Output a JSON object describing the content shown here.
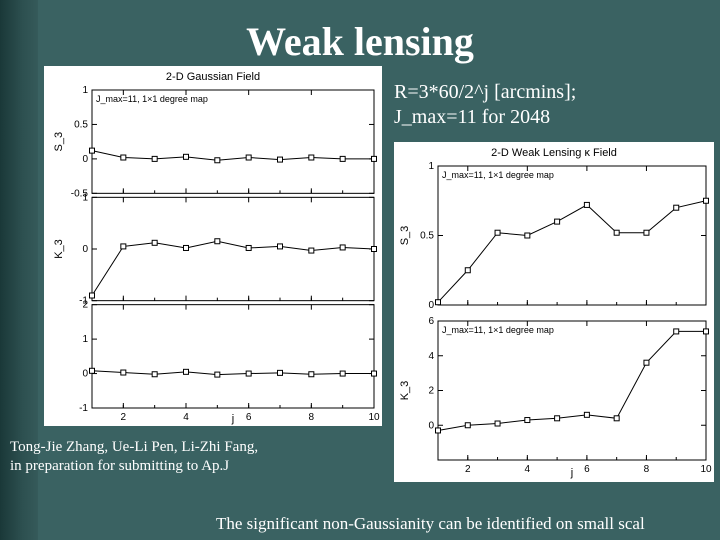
{
  "title": "Weak lensing",
  "formula_line1": "R=3*60/2^j  [arcmins];",
  "formula_line2": "J_max=11 for 2048",
  "credit_line1": "Tong-Jie Zhang, Ue-Li Pen, Li-Zhi Fang,",
  "credit_line2": " in preparation for submitting to Ap.J",
  "caption": "The significant non-Gaussianity can be identified on small scal",
  "colors": {
    "slide_bg": "#3a6262",
    "slide_strip": "#1a3838",
    "panel_bg": "#ffffff",
    "axis": "#000000",
    "text": "#000000",
    "title_text": "#ffffff"
  },
  "left_panel": {
    "supertitle": "2-D Gaussian Field",
    "label": "J_max=11, 1×1 degree map",
    "xlim": [
      1,
      10
    ],
    "xtick_step": 2,
    "font_family_axis": "sans-serif",
    "font_size_axis": 10,
    "font_size_title": 10,
    "marker": "square",
    "marker_size": 5,
    "line_width": 1,
    "series": [
      {
        "ylabel": "S_3",
        "ylim": [
          -0.5,
          1
        ],
        "yticks": [
          -0.5,
          0,
          0.5,
          1
        ],
        "x": [
          1,
          2,
          3,
          4,
          5,
          6,
          7,
          8,
          9,
          10
        ],
        "y": [
          0.12,
          0.02,
          0.0,
          0.03,
          -0.02,
          0.02,
          -0.01,
          0.02,
          0.0,
          0.0
        ]
      },
      {
        "ylabel": "K_3",
        "ylim": [
          -1,
          1
        ],
        "yticks": [
          -1,
          0,
          1
        ],
        "x": [
          1,
          2,
          3,
          4,
          5,
          6,
          7,
          8,
          9,
          10
        ],
        "y": [
          -0.9,
          0.05,
          0.12,
          0.02,
          0.15,
          0.02,
          0.05,
          -0.03,
          0.03,
          0.0
        ]
      },
      {
        "ylabel": "",
        "ylim": [
          -1,
          2
        ],
        "yticks": [
          -1,
          0,
          1,
          2
        ],
        "x": [
          1,
          2,
          3,
          4,
          5,
          6,
          7,
          8,
          9,
          10
        ],
        "y": [
          0.08,
          0.03,
          -0.02,
          0.05,
          -0.03,
          0.0,
          0.02,
          -0.02,
          0.0,
          0.0
        ]
      }
    ]
  },
  "right_panel": {
    "supertitle": "2-D Weak Lensing κ Field",
    "label_top": "J_max=11, 1×1 degree map",
    "label_bottom": "J_max=11, 1×1 degree map",
    "xlim": [
      1,
      10
    ],
    "xtick_step": 2,
    "xlabel": "j",
    "font_family_axis": "sans-serif",
    "font_size_axis": 10,
    "font_size_title": 10,
    "marker": "square",
    "marker_size": 5,
    "line_width": 1,
    "series": [
      {
        "ylabel": "S_3",
        "ylim": [
          0,
          1
        ],
        "yticks": [
          0,
          0.5,
          1
        ],
        "x": [
          1,
          2,
          3,
          4,
          5,
          6,
          7,
          8,
          9,
          10
        ],
        "y": [
          0.02,
          0.25,
          0.52,
          0.5,
          0.6,
          0.72,
          0.52,
          0.52,
          0.7,
          0.75
        ]
      },
      {
        "ylabel": "K_3",
        "ylim": [
          -2,
          6
        ],
        "yticks": [
          0,
          2,
          4,
          6
        ],
        "x": [
          1,
          2,
          3,
          4,
          5,
          6,
          7,
          8,
          9,
          10
        ],
        "y": [
          -0.3,
          0.0,
          0.1,
          0.3,
          0.4,
          0.6,
          0.4,
          3.6,
          5.4,
          5.4
        ]
      }
    ]
  }
}
